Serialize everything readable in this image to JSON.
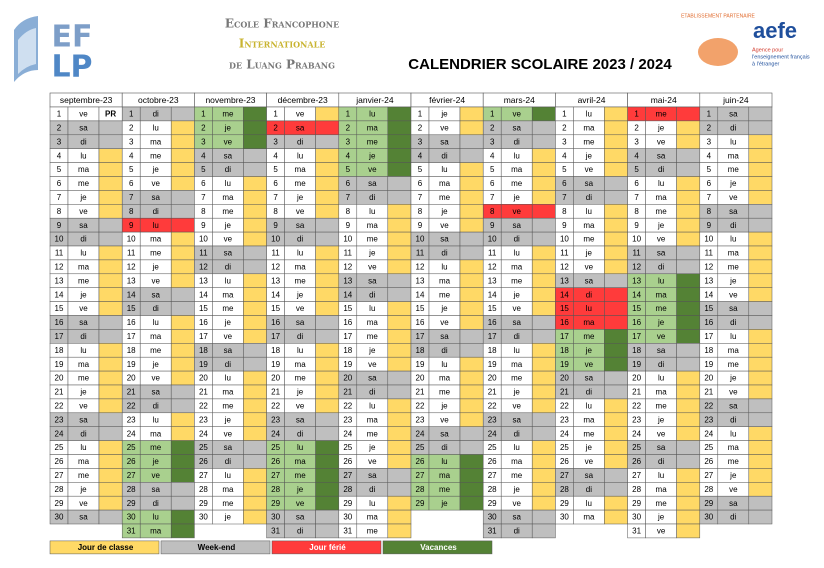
{
  "header": {
    "logo_top": "EF",
    "logo_bottom": "LP",
    "school": [
      "Ecole Francophone",
      "Internationale",
      "de Luang Prabang"
    ],
    "partner": "ETABLISSEMENT PARTENAIRE",
    "aefe": "aefe",
    "aefe_tagline": [
      "Agence pour",
      "l'enseignement français",
      "à l'étranger"
    ]
  },
  "title": "CALENDRIER SCOLAIRE 2023 / 2024",
  "legend": [
    {
      "code": "c",
      "label": "Jour de classe",
      "color": "#FFD966",
      "cell_color": "#FFFFFF"
    },
    {
      "code": "w",
      "label": "Week-end",
      "color": "#BFBFBF",
      "cell_color": "#BFBFBF"
    },
    {
      "code": "f",
      "label": "Jour férié",
      "color": "#FF3B3B",
      "cell_color": "#FF3B3B"
    },
    {
      "code": "v",
      "label": "Vacances",
      "color": "#548235",
      "cell_color": "#A9D08E"
    }
  ],
  "months": [
    {
      "name": "septembre-23",
      "days": [
        1,
        2,
        3,
        4,
        5,
        6,
        7,
        8,
        9,
        10,
        11,
        12,
        13,
        14,
        15,
        16,
        17,
        18,
        19,
        20,
        21,
        22,
        23,
        24,
        25,
        26,
        27,
        28,
        29,
        30
      ],
      "weekdays": [
        "ve",
        "sa",
        "di",
        "lu",
        "ma",
        "me",
        "je",
        "ve",
        "sa",
        "di",
        "lu",
        "ma",
        "me",
        "je",
        "ve",
        "sa",
        "di",
        "lu",
        "ma",
        "me",
        "je",
        "ve",
        "sa",
        "di",
        "lu",
        "ma",
        "me",
        "je",
        "ve",
        "sa"
      ],
      "kinds": "cwwcccccwwcccccwwcccccwwcccccw",
      "notes": [
        {
          "day": 1,
          "text": "PR"
        }
      ]
    },
    {
      "name": "octobre-23",
      "days": [
        1,
        2,
        3,
        4,
        5,
        6,
        7,
        8,
        9,
        10,
        11,
        12,
        13,
        14,
        15,
        16,
        17,
        18,
        19,
        20,
        21,
        22,
        23,
        24,
        25,
        26,
        27,
        28,
        29,
        30,
        31
      ],
      "weekdays": [
        "di",
        "lu",
        "ma",
        "me",
        "je",
        "ve",
        "sa",
        "di",
        "lu",
        "ma",
        "me",
        "je",
        "ve",
        "sa",
        "di",
        "lu",
        "ma",
        "me",
        "je",
        "ve",
        "sa",
        "di",
        "lu",
        "ma",
        "me",
        "je",
        "ve",
        "sa",
        "di",
        "lu",
        "ma"
      ],
      "kinds": "wcccccwwfccccwwcccccwwccvvvwwvv"
    },
    {
      "name": "novembre-23",
      "days": [
        1,
        2,
        3,
        4,
        5,
        6,
        7,
        8,
        9,
        10,
        11,
        12,
        13,
        14,
        15,
        16,
        17,
        18,
        19,
        20,
        21,
        22,
        23,
        24,
        25,
        26,
        27,
        28,
        29,
        30
      ],
      "weekdays": [
        "me",
        "je",
        "ve",
        "sa",
        "di",
        "lu",
        "ma",
        "me",
        "je",
        "ve",
        "sa",
        "di",
        "lu",
        "ma",
        "me",
        "je",
        "ve",
        "sa",
        "di",
        "lu",
        "ma",
        "me",
        "je",
        "ve",
        "sa",
        "di",
        "lu",
        "ma",
        "me",
        "je"
      ],
      "kinds": "vvvwwcccccwwcccccwwcccccwwcccc"
    },
    {
      "name": "décembre-23",
      "days": [
        1,
        2,
        3,
        4,
        5,
        6,
        7,
        8,
        9,
        10,
        11,
        12,
        13,
        14,
        15,
        16,
        17,
        18,
        19,
        20,
        21,
        22,
        23,
        24,
        25,
        26,
        27,
        28,
        29,
        30,
        31
      ],
      "weekdays": [
        "ve",
        "sa",
        "di",
        "lu",
        "ma",
        "me",
        "je",
        "ve",
        "sa",
        "di",
        "lu",
        "ma",
        "me",
        "je",
        "ve",
        "sa",
        "di",
        "lu",
        "ma",
        "me",
        "je",
        "ve",
        "sa",
        "di",
        "lu",
        "ma",
        "me",
        "je",
        "ve",
        "sa",
        "di"
      ],
      "kinds": "cfwcccccwwcccccwwcccccwwvvvvvww"
    },
    {
      "name": "janvier-24",
      "days": [
        1,
        2,
        3,
        4,
        5,
        6,
        7,
        8,
        9,
        10,
        11,
        12,
        13,
        14,
        15,
        16,
        17,
        18,
        19,
        20,
        21,
        22,
        23,
        24,
        25,
        26,
        27,
        28,
        29,
        30,
        31
      ],
      "weekdays": [
        "lu",
        "ma",
        "me",
        "je",
        "ve",
        "sa",
        "di",
        "lu",
        "ma",
        "me",
        "je",
        "ve",
        "sa",
        "di",
        "lu",
        "ma",
        "me",
        "je",
        "ve",
        "sa",
        "di",
        "lu",
        "ma",
        "me",
        "je",
        "ve",
        "sa",
        "di",
        "lu",
        "ma",
        "me"
      ],
      "kinds": "vvvvvwwcccccwwcccccwwcccccwwccc"
    },
    {
      "name": "février-24",
      "days": [
        1,
        2,
        3,
        4,
        5,
        6,
        7,
        8,
        9,
        10,
        11,
        12,
        13,
        14,
        15,
        16,
        17,
        18,
        19,
        20,
        21,
        22,
        23,
        24,
        25,
        26,
        27,
        28,
        29
      ],
      "weekdays": [
        "je",
        "ve",
        "sa",
        "di",
        "lu",
        "ma",
        "me",
        "je",
        "ve",
        "sa",
        "di",
        "lu",
        "ma",
        "me",
        "je",
        "ve",
        "sa",
        "di",
        "lu",
        "ma",
        "me",
        "je",
        "ve",
        "sa",
        "di",
        "lu",
        "ma",
        "me",
        "je"
      ],
      "kinds": "ccwwcccccwwcccccwwcccccwwvvvv"
    },
    {
      "name": "mars-24",
      "days": [
        1,
        2,
        3,
        4,
        5,
        6,
        7,
        8,
        9,
        10,
        11,
        12,
        13,
        14,
        15,
        16,
        17,
        18,
        19,
        20,
        21,
        22,
        23,
        24,
        25,
        26,
        27,
        28,
        29,
        30,
        31
      ],
      "weekdays": [
        "ve",
        "sa",
        "di",
        "lu",
        "ma",
        "me",
        "je",
        "ve",
        "sa",
        "di",
        "lu",
        "ma",
        "me",
        "je",
        "ve",
        "sa",
        "di",
        "lu",
        "ma",
        "me",
        "je",
        "ve",
        "sa",
        "di",
        "lu",
        "ma",
        "me",
        "je",
        "ve",
        "sa",
        "di"
      ],
      "kinds": "vwwccccfwwcccccwwcccccwwcccccww"
    },
    {
      "name": "avril-24",
      "days": [
        1,
        2,
        3,
        4,
        5,
        6,
        7,
        8,
        9,
        10,
        11,
        12,
        13,
        14,
        15,
        16,
        17,
        18,
        19,
        20,
        21,
        22,
        23,
        24,
        25,
        26,
        27,
        28,
        29,
        30
      ],
      "weekdays": [
        "lu",
        "ma",
        "me",
        "je",
        "ve",
        "sa",
        "di",
        "lu",
        "ma",
        "me",
        "je",
        "ve",
        "sa",
        "di",
        "lu",
        "ma",
        "me",
        "je",
        "ve",
        "sa",
        "di",
        "lu",
        "ma",
        "me",
        "je",
        "ve",
        "sa",
        "di",
        "lu",
        "ma"
      ],
      "kinds": "cccccwwcccccwfffvvvwwcccccwwcc"
    },
    {
      "name": "mai-24",
      "days": [
        1,
        2,
        3,
        4,
        5,
        6,
        7,
        8,
        9,
        10,
        11,
        12,
        13,
        14,
        15,
        16,
        17,
        18,
        19,
        20,
        21,
        22,
        23,
        24,
        25,
        26,
        27,
        28,
        29,
        30,
        31
      ],
      "weekdays": [
        "me",
        "je",
        "ve",
        "sa",
        "di",
        "lu",
        "ma",
        "me",
        "je",
        "ve",
        "sa",
        "di",
        "lu",
        "ma",
        "me",
        "je",
        "ve",
        "sa",
        "di",
        "lu",
        "ma",
        "me",
        "je",
        "ve",
        "sa",
        "di",
        "lu",
        "ma",
        "me",
        "je",
        "ve"
      ],
      "kinds": "fccwwcccccwwvvvvvwwcccccwwccccc"
    },
    {
      "name": "juin-24",
      "days": [
        1,
        2,
        3,
        4,
        5,
        6,
        7,
        8,
        9,
        10,
        11,
        12,
        13,
        14,
        15,
        16,
        17,
        18,
        19,
        20,
        21,
        22,
        23,
        24,
        25,
        26,
        27,
        28,
        29,
        30
      ],
      "weekdays": [
        "sa",
        "di",
        "lu",
        "ma",
        "me",
        "je",
        "ve",
        "sa",
        "di",
        "lu",
        "ma",
        "me",
        "je",
        "ve",
        "sa",
        "di",
        "lu",
        "ma",
        "me",
        "je",
        "ve",
        "sa",
        "di",
        "lu",
        "ma",
        "me",
        "je",
        "ve",
        "sa",
        "di"
      ],
      "kinds": "wwcccccwwcccccwwcccccwwcccccww"
    }
  ]
}
